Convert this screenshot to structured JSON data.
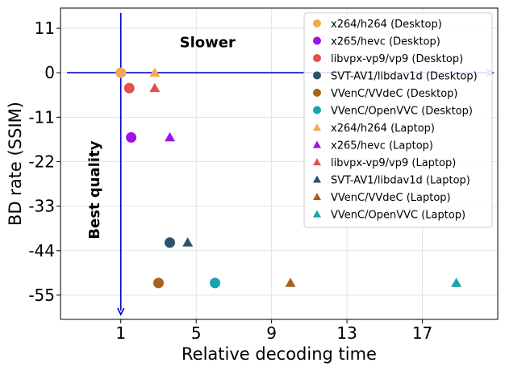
{
  "chart_data": {
    "type": "scatter",
    "title": "",
    "xlabel": "Relative decoding time",
    "ylabel": "BD rate (SSIM)",
    "xlim": [
      -2.2,
      21.0
    ],
    "ylim": [
      -61,
      16
    ],
    "xticks": [
      1,
      5,
      9,
      13,
      17
    ],
    "xtick_labels": [
      "1",
      "5",
      "9",
      "13",
      "17"
    ],
    "yticks": [
      11,
      0,
      -11,
      -22,
      -33,
      -44,
      -55
    ],
    "ytick_labels": [
      "11",
      "0",
      "-11",
      "-22",
      "-33",
      "-44",
      "-55"
    ],
    "grid": true,
    "legend_position": "top-right",
    "reference_point": {
      "x": 1,
      "y": 0
    },
    "annotations": [
      {
        "text": "Slower",
        "x": 5.6,
        "y": 7.5
      },
      {
        "text": "Best quality",
        "x": -0.4,
        "y": -29,
        "rotation": -90
      }
    ],
    "series": [
      {
        "name": "x264/h264 (Desktop)",
        "marker": "circle",
        "color": "#F2A950",
        "points": [
          {
            "x": 1.0,
            "y": 0.0
          }
        ]
      },
      {
        "name": "x265/hevc (Desktop)",
        "marker": "circle",
        "color": "#A012E8",
        "points": [
          {
            "x": 1.55,
            "y": -16.0
          }
        ]
      },
      {
        "name": "libvpx-vp9/vp9 (Desktop)",
        "marker": "circle",
        "color": "#E5504A",
        "points": [
          {
            "x": 1.45,
            "y": -3.8
          }
        ]
      },
      {
        "name": "SVT-AV1/libdav1d (Desktop)",
        "marker": "circle",
        "color": "#2C5470",
        "points": [
          {
            "x": 3.6,
            "y": -42.0
          }
        ]
      },
      {
        "name": "VVenC/VVdeC (Desktop)",
        "marker": "circle",
        "color": "#A8611E",
        "points": [
          {
            "x": 3.0,
            "y": -52.0
          }
        ]
      },
      {
        "name": "VVenC/OpenVVC (Desktop)",
        "marker": "circle",
        "color": "#17A4B0",
        "points": [
          {
            "x": 6.0,
            "y": -52.0
          }
        ]
      },
      {
        "name": "x264/h264 (Laptop)",
        "marker": "triangle",
        "color": "#F2A950",
        "points": [
          {
            "x": 2.8,
            "y": 0.0
          }
        ]
      },
      {
        "name": "x265/hevc (Laptop)",
        "marker": "triangle",
        "color": "#A012E8",
        "points": [
          {
            "x": 3.6,
            "y": -16.0
          }
        ]
      },
      {
        "name": "libvpx-vp9/vp9 (Laptop)",
        "marker": "triangle",
        "color": "#E5504A",
        "points": [
          {
            "x": 2.8,
            "y": -3.8
          }
        ]
      },
      {
        "name": "SVT-AV1/libdav1d (Laptop)",
        "marker": "triangle",
        "color": "#2C5470",
        "points": [
          {
            "x": 4.55,
            "y": -42.0
          }
        ]
      },
      {
        "name": "VVenC/VVdeC (Laptop)",
        "marker": "triangle",
        "color": "#A8611E",
        "points": [
          {
            "x": 10.0,
            "y": -52.0
          }
        ]
      },
      {
        "name": "VVenC/OpenVVC (Laptop)",
        "marker": "triangle",
        "color": "#17A4B0",
        "points": [
          {
            "x": 18.8,
            "y": -52.0
          }
        ]
      }
    ]
  },
  "colors": {
    "arrow": "#0000CC",
    "grid": "#dddddd",
    "axes": "#000000"
  }
}
